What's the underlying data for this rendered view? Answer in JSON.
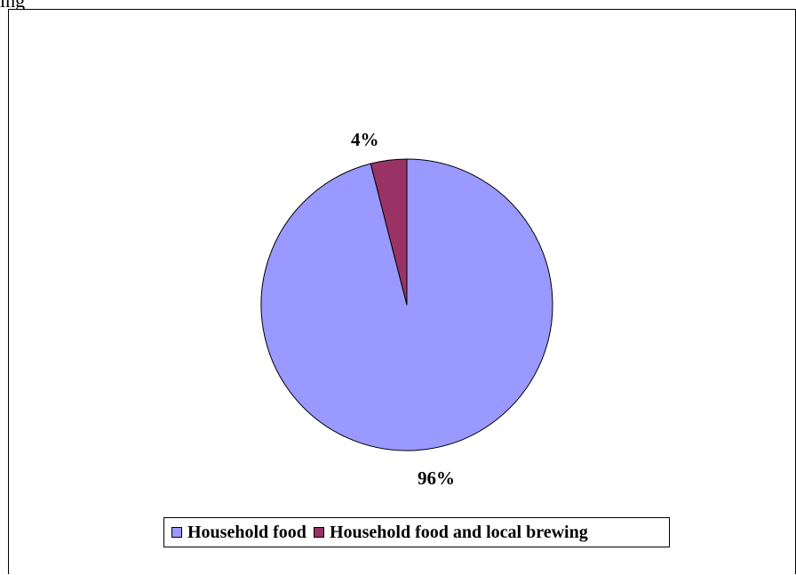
{
  "top_fragment": "ing",
  "chart_data": {
    "type": "pie",
    "title": "",
    "series": [
      {
        "categories": [
          "Household food",
          "Household food and local brewing"
        ],
        "values": [
          96,
          4
        ],
        "labels": [
          "96%",
          "4%"
        ]
      }
    ],
    "colors": [
      "#9999ff",
      "#993366"
    ],
    "legend_position": "bottom",
    "legend": [
      "Household food",
      "Household food and local brewing"
    ]
  }
}
